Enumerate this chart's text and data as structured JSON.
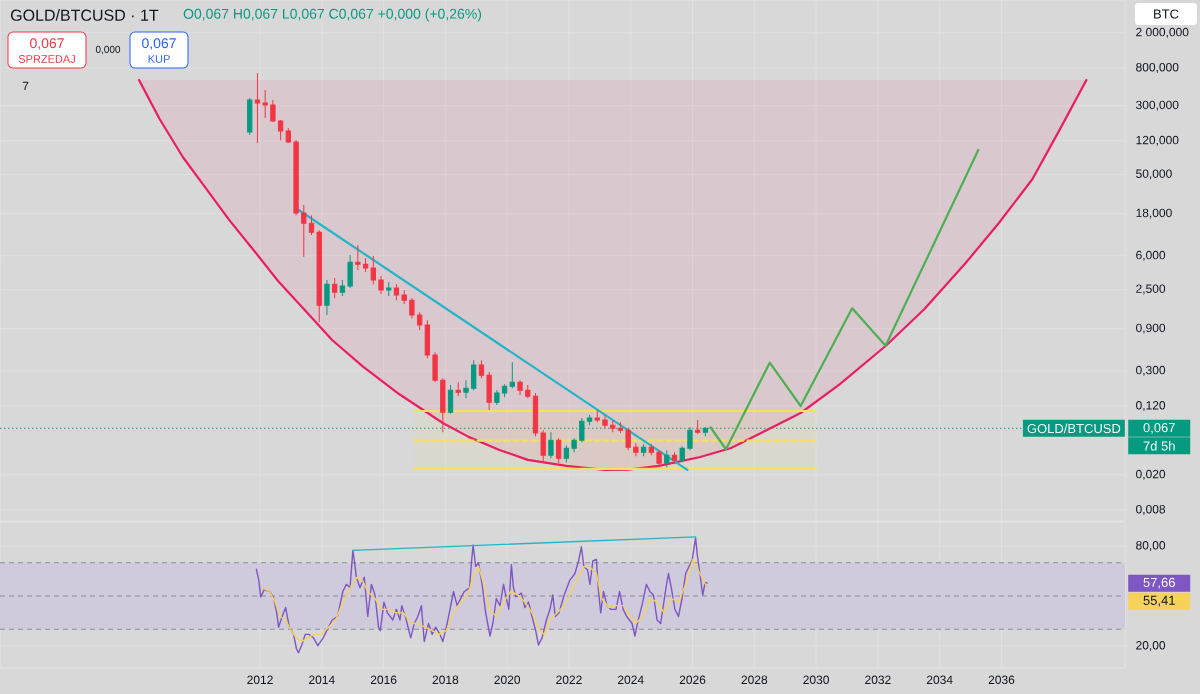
{
  "chart_data": [
    {
      "type": "candlestick",
      "title": "GOLD/BTCUSD · 1T",
      "subtitle": "O0,067 H0,067 L0,067 C0,067 +0,000 (+0,26%)",
      "ylabel": "BTC",
      "x": [
        "2011-09",
        "2011-12",
        "2012-03",
        "2012-06",
        "2012-09",
        "2012-12",
        "2013-03",
        "2013-06",
        "2013-09",
        "2013-12",
        "2014-03",
        "2014-06",
        "2014-09",
        "2014-12",
        "2015-03",
        "2015-06",
        "2015-09",
        "2015-12",
        "2016-03",
        "2016-06",
        "2016-09",
        "2016-12",
        "2017-03",
        "2017-06",
        "2017-09",
        "2017-12",
        "2018-03",
        "2018-06",
        "2018-09",
        "2018-12",
        "2019-03",
        "2019-06",
        "2019-09",
        "2019-12",
        "2020-03",
        "2020-06",
        "2020-09",
        "2020-12",
        "2021-03",
        "2021-06",
        "2021-09",
        "2021-12",
        "2022-03",
        "2022-06",
        "2022-09",
        "2022-12",
        "2023-03",
        "2023-06",
        "2023-09",
        "2023-12",
        "2024-03",
        "2024-06",
        "2024-09",
        "2024-12",
        "2025-03",
        "2025-06",
        "2025-09",
        "2025-12",
        "2026-03",
        "2026-06"
      ],
      "ohlc": [
        [
          151,
          366,
          140,
          347
        ],
        [
          347,
          702,
          113,
          321
        ],
        [
          321,
          451,
          217,
          305
        ],
        [
          305,
          347,
          196,
          201
        ],
        [
          201,
          206,
          122,
          155
        ],
        [
          155,
          168,
          113,
          116
        ],
        [
          116,
          122,
          17.3,
          18.3
        ],
        [
          18.3,
          22.5,
          5.81,
          14.0
        ],
        [
          14.0,
          17.3,
          10.3,
          11.1
        ],
        [
          11.1,
          11.7,
          1.07,
          1.66
        ],
        [
          1.66,
          3.19,
          1.28,
          2.87
        ],
        [
          2.87,
          3.36,
          1.99,
          2.33
        ],
        [
          2.33,
          3.19,
          2.1,
          2.73
        ],
        [
          2.73,
          6.12,
          2.59,
          5.09
        ],
        [
          5.09,
          7.93,
          4.14,
          4.83
        ],
        [
          4.83,
          5.65,
          3.93,
          4.36
        ],
        [
          4.36,
          5.96,
          2.87,
          3.19
        ],
        [
          3.19,
          3.54,
          2.22,
          2.46
        ],
        [
          2.46,
          3.03,
          2.1,
          2.59
        ],
        [
          2.59,
          2.87,
          1.89,
          2.16
        ],
        [
          2.16,
          2.46,
          1.71,
          1.89
        ],
        [
          1.89,
          1.99,
          1.18,
          1.28
        ],
        [
          1.28,
          1.38,
          0.866,
          0.987
        ],
        [
          0.987,
          1.12,
          0.417,
          0.452
        ],
        [
          0.452,
          0.488,
          0.223,
          0.235
        ],
        [
          0.235,
          0.248,
          0.0607,
          0.102
        ],
        [
          0.102,
          0.207,
          0.098,
          0.181
        ],
        [
          0.181,
          0.223,
          0.155,
          0.172
        ],
        [
          0.172,
          0.235,
          0.147,
          0.191
        ],
        [
          0.191,
          0.396,
          0.181,
          0.348
        ],
        [
          0.348,
          0.396,
          0.248,
          0.268
        ],
        [
          0.268,
          0.29,
          0.108,
          0.132
        ],
        [
          0.132,
          0.181,
          0.123,
          0.168
        ],
        [
          0.168,
          0.212,
          0.151,
          0.201
        ],
        [
          0.201,
          0.376,
          0.191,
          0.223
        ],
        [
          0.223,
          0.235,
          0.159,
          0.181
        ],
        [
          0.181,
          0.207,
          0.147,
          0.155
        ],
        [
          0.155,
          0.168,
          0.0547,
          0.0592
        ],
        [
          0.0592,
          0.064,
          0.027,
          0.0333
        ],
        [
          0.0333,
          0.0607,
          0.0308,
          0.0493
        ],
        [
          0.0493,
          0.0519,
          0.027,
          0.0308
        ],
        [
          0.0308,
          0.0433,
          0.0278,
          0.04
        ],
        [
          0.04,
          0.0519,
          0.036,
          0.0493
        ],
        [
          0.0493,
          0.0875,
          0.0468,
          0.0809
        ],
        [
          0.0809,
          0.0946,
          0.0729,
          0.0875
        ],
        [
          0.0875,
          0.108,
          0.0788,
          0.0831
        ],
        [
          0.0831,
          0.0946,
          0.0674,
          0.0729
        ],
        [
          0.0729,
          0.0831,
          0.0607,
          0.0674
        ],
        [
          0.0674,
          0.0788,
          0.0592,
          0.064
        ],
        [
          0.064,
          0.0674,
          0.038,
          0.0411
        ],
        [
          0.0411,
          0.0456,
          0.0325,
          0.036
        ],
        [
          0.036,
          0.0444,
          0.0325,
          0.0411
        ],
        [
          0.0411,
          0.0444,
          0.0333,
          0.036
        ],
        [
          0.036,
          0.038,
          0.0244,
          0.027
        ],
        [
          0.027,
          0.038,
          0.0244,
          0.0333
        ],
        [
          0.0333,
          0.036,
          0.0263,
          0.0292
        ],
        [
          0.0292,
          0.0421,
          0.0278,
          0.04
        ],
        [
          0.04,
          0.0692,
          0.038,
          0.064
        ],
        [
          0.064,
          0.0831,
          0.0577,
          0.0607
        ],
        [
          0.0607,
          0.0692,
          0.0547,
          0.067
        ]
      ],
      "colors": [
        "#089981",
        "#f23645",
        "#f23645",
        "#f23645",
        "#f23645",
        "#f23645",
        "#f23645",
        "#f23645",
        "#f23645",
        "#f23645",
        "#089981",
        "#f23645",
        "#089981",
        "#089981",
        "#f23645",
        "#f23645",
        "#f23645",
        "#f23645",
        "#089981",
        "#f23645",
        "#f23645",
        "#f23645",
        "#f23645",
        "#f23645",
        "#f23645",
        "#f23645",
        "#089981",
        "#f23645",
        "#089981",
        "#089981",
        "#f23645",
        "#f23645",
        "#089981",
        "#089981",
        "#089981",
        "#f23645",
        "#f23645",
        "#f23645",
        "#f23645",
        "#089981",
        "#f23645",
        "#089981",
        "#089981",
        "#089981",
        "#089981",
        "#f23645",
        "#f23645",
        "#f23645",
        "#f23645",
        "#f23645",
        "#f23645",
        "#089981",
        "#f23645",
        "#f23645",
        "#089981",
        "#f23645",
        "#089981",
        "#089981",
        "#f23645",
        "#089981"
      ],
      "series": [
        {
          "type": "line",
          "color": "#e91e63",
          "x": [
            "2008-02",
            "2008-10",
            "2009-07",
            "2010-04",
            "2011-01",
            "2011-11",
            "2012-08",
            "2013-06",
            "2014-05",
            "2015-05",
            "2016-07",
            "2017-12",
            "2018-10",
            "2019-10",
            "2020-09",
            "2021-12",
            "2023-03",
            "2023-12",
            "2024-12",
            "2026-04",
            "2027-04",
            "2029-07",
            "2030-10",
            "2032-04",
            "2033-07",
            "2034-11",
            "2035-12",
            "2037-01",
            "2037-12",
            "2038-10"
          ],
          "values": [
            585,
            212,
            78.7,
            34.8,
            15.3,
            6.68,
            3.11,
            1.5,
            0.67,
            0.335,
            0.164,
            0.0771,
            0.0537,
            0.0382,
            0.0295,
            0.0252,
            0.0227,
            0.0229,
            0.0252,
            0.0318,
            0.0402,
            0.1,
            0.209,
            0.573,
            1.49,
            4.94,
            14.1,
            44.1,
            168,
            585
          ],
          "lower": [
            585,
            212,
            78.7,
            34.8,
            15.3,
            6.68,
            3.11,
            1.5,
            0.67,
            0.335,
            0.164,
            0.0771,
            0.0537,
            0.0382,
            0.0295,
            0.0252,
            0.0227,
            0.0229,
            0.0252,
            0.0318,
            0.0402,
            0.1,
            0.209,
            0.573,
            1.49,
            4.94,
            14.1,
            44.1,
            168,
            585
          ],
          "upper": [
            585,
            585,
            585,
            585,
            585,
            585,
            585,
            585,
            585,
            585,
            585,
            585,
            585,
            585,
            585,
            585,
            585,
            585,
            585,
            585,
            585,
            585,
            585,
            585,
            585,
            585,
            585,
            585,
            585,
            585
          ]
        },
        {
          "type": "line",
          "color": "#f5e15c",
          "line_style": "dashed",
          "x": [
            "2017-01",
            "2030-01"
          ],
          "values": [
            0.0486,
            0.0486
          ],
          "lower": [
            0.0233,
            0.0233
          ],
          "upper": [
            0.1054,
            0.1054
          ]
        },
        {
          "type": "line",
          "color": "#f5e15c",
          "x": [
            "2017-01",
            "2030-01"
          ],
          "values": [
            0.1054,
            0.1054
          ]
        },
        {
          "type": "line",
          "color": "#f5e15c",
          "x": [
            "2017-01",
            "2030-01"
          ],
          "values": [
            0.0233,
            0.0233
          ]
        },
        {
          "type": "line",
          "color": "#22b5c9",
          "x": [
            "2013-04",
            "2025-11"
          ],
          "values": [
            19.8,
            0.0227
          ]
        },
        {
          "type": "line",
          "color": "#4caf50",
          "x": [
            "2026-08",
            "2027-02",
            "2028-07",
            "2029-07",
            "2031-03",
            "2032-04",
            "2035-04"
          ],
          "values": [
            0.0689,
            0.0389,
            0.371,
            0.12,
            1.53,
            0.578,
            94.4
          ]
        }
      ],
      "xlim": [
        "2003-08",
        "2040-01"
      ],
      "ylim": [
        0.006,
        4700
      ],
      "xticks": [
        "2012",
        "2014",
        "2016",
        "2018",
        "2020",
        "2022",
        "2024",
        "2026",
        "2028",
        "2030",
        "2032",
        "2034",
        "2036"
      ],
      "yticks": [
        {
          "value": 2000,
          "label": "2 000,000"
        },
        {
          "value": 800,
          "label": "800,000"
        },
        {
          "value": 300,
          "label": "300,000"
        },
        {
          "value": 120,
          "label": "120,000"
        },
        {
          "value": 50,
          "label": "50,000"
        },
        {
          "value": 18,
          "label": "18,000"
        },
        {
          "value": 6,
          "label": "6,000"
        },
        {
          "value": 2.5,
          "label": "2,500"
        },
        {
          "value": 0.9,
          "label": "0,900"
        },
        {
          "value": 0.3,
          "label": "0,300"
        },
        {
          "value": 0.12,
          "label": "0,120"
        },
        {
          "value": 0.02,
          "label": "0,020"
        },
        {
          "value": 0.008,
          "label": "0,008"
        }
      ],
      "log": true,
      "grid": true,
      "tick_labels": "y",
      "ref_lines": [
        {
          "axis": "y",
          "value": 0.067,
          "label": "GOLD/BTCUSD",
          "color": "#089981",
          "line_style": "dotted"
        }
      ],
      "annotations": [
        "0,067",
        "SPRZEDAJ",
        "0,000",
        "0,067",
        "KUP",
        "7",
        "0,067",
        "7d 5h"
      ]
    },
    {
      "type": "line",
      "series": [
        {
          "color": "#7e57c2",
          "x": [
            "2011-11-19",
            "2011-12-18",
            "2012-01-09",
            "2012-02-21",
            "2012-04-23",
            "2012-06-05",
            "2012-07-16",
            "2012-08-07",
            "2012-09-19",
            "2012-10-30",
            "2012-12-12",
            "2013-02-02",
            "2013-03-05",
            "2013-03-30",
            "2013-05-08",
            "2013-06-19",
            "2013-08-01",
            "2013-09-25",
            "2013-11-15",
            "2014-01-17",
            "2014-03-20",
            "2014-05-02",
            "2014-07-04",
            "2014-09-06",
            "2014-10-18",
            "2014-11-30",
            "2015-01-03",
            "2015-01-19",
            "2015-02-14",
            "2015-03-26",
            "2015-05-16",
            "2015-06-27",
            "2015-08-09",
            "2015-09-21",
            "2015-11-02",
            "2015-11-23",
            "2016-01-05",
            "2016-02-16",
            "2016-04-19",
            "2016-05-30",
            "2016-07-12",
            "2016-08-03",
            "2016-09-15",
            "2016-11-17",
            "2016-12-29",
            "2017-02-10",
            "2017-03-22",
            "2017-04-25",
            "2017-06-15",
            "2017-07-27",
            "2017-09-08",
            "2017-10-28",
            "2017-12-01",
            "2018-01-13",
            "2018-02-25",
            "2018-04-06",
            "2018-05-18",
            "2018-08-11",
            "2018-10-13",
            "2018-11-04",
            "2018-11-25",
            "2018-12-24",
            "2019-01-27",
            "2019-03-09",
            "2019-04-21",
            "2019-06-11",
            "2019-07-14",
            "2019-08-25",
            "2019-10-07",
            "2019-11-19",
            "2019-12-22",
            "2020-01-21",
            "2020-02-20",
            "2020-03-15",
            "2020-04-14",
            "2020-06-17",
            "2020-07-28",
            "2020-09-10",
            "2020-10-21",
            "2020-12-03",
            "2021-01-06",
            "2021-02-18",
            "2021-04-08",
            "2021-05-20",
            "2021-06-23",
            "2021-07-22",
            "2021-09-04",
            "2021-11-06",
            "2022-01-08",
            "2022-03-11",
            "2022-04-23",
            "2022-05-26",
            "2022-06-25",
            "2022-08-07",
            "2022-09-06",
            "2022-10-09",
            "2022-11-21",
            "2022-12-12",
            "2023-01-11",
            "2023-02-14",
            "2023-03-25",
            "2023-05-07",
            "2023-07-09",
            "2023-08-21",
            "2023-10-03",
            "2023-11-14",
            "2024-01-17",
            "2024-02-20",
            "2024-03-19",
            "2024-05-21",
            "2024-07-03",
            "2024-08-15",
            "2024-09-26",
            "2024-11-08",
            "2024-12-20",
            "2025-02-22",
            "2025-03-21",
            "2025-04-24",
            "2025-06-06",
            "2025-07-18",
            "2025-08-29",
            "2025-10-11",
            "2025-12-30",
            "2026-01-04",
            "2026-02-07",
            "2026-02-28",
            "2026-03-27",
            "2026-04-30",
            "2026-05-29",
            "2026-06-20"
          ],
          "values": [
            66.0,
            59.2,
            49.5,
            53.8,
            52.7,
            49.5,
            39.9,
            31.3,
            37.7,
            43.1,
            31.3,
            27.0,
            18.5,
            15.9,
            20.6,
            27.0,
            27.0,
            24.9,
            20.2,
            24.9,
            31.3,
            35.6,
            37.7,
            52.7,
            57.0,
            54.9,
            77.4,
            72.0,
            61.3,
            54.9,
            61.3,
            37.7,
            57.0,
            50.6,
            31.3,
            29.2,
            46.3,
            39.9,
            35.6,
            42.0,
            35.6,
            44.2,
            37.7,
            24.9,
            33.5,
            37.7,
            44.2,
            22.7,
            33.5,
            27.0,
            31.3,
            27.0,
            22.7,
            31.3,
            42.0,
            52.7,
            44.2,
            52.7,
            54.9,
            69.9,
            80.6,
            67.7,
            69.9,
            57.0,
            39.9,
            26.0,
            33.5,
            48.5,
            44.2,
            57.0,
            48.5,
            42.0,
            68.8,
            54.9,
            49.5,
            51.7,
            43.1,
            46.3,
            37.7,
            29.2,
            20.6,
            24.9,
            35.6,
            42.0,
            50.6,
            37.7,
            39.9,
            50.6,
            59.2,
            63.5,
            71.0,
            79.5,
            67.7,
            65.6,
            57.0,
            71.0,
            72.0,
            54.9,
            39.9,
            52.7,
            44.2,
            42.0,
            42.0,
            52.7,
            42.0,
            37.7,
            33.5,
            26.0,
            33.5,
            46.3,
            57.0,
            52.7,
            50.6,
            35.6,
            33.5,
            54.9,
            63.5,
            54.9,
            42.0,
            37.7,
            48.5,
            63.5,
            72.0,
            74.2,
            84.9,
            74.2,
            63.5,
            50.6,
            58.1,
            57.7
          ]
        },
        {
          "color": "#f5d35a",
          "x": [
            "2012-01-30",
            "2012-04-23",
            "2012-06-26",
            "2012-08-28",
            "2012-10-30",
            "2013-01-03",
            "2013-03-05",
            "2013-05-08",
            "2013-07-10",
            "2013-10-03",
            "2013-12-26",
            "2014-03-20",
            "2014-06-13",
            "2014-09-06",
            "2014-11-30",
            "2015-02-23",
            "2015-04-25",
            "2015-06-27",
            "2015-09-21",
            "2015-12-14",
            "2016-03-07",
            "2016-05-30",
            "2016-08-24",
            "2016-11-17",
            "2017-02-10",
            "2017-05-03",
            "2017-07-27",
            "2017-10-20",
            "2018-01-13",
            "2018-04-06",
            "2018-06-29",
            "2018-09-22",
            "2018-11-25",
            "2019-01-27",
            "2019-03-29",
            "2019-06-02",
            "2019-08-25",
            "2019-11-19",
            "2020-02-12",
            "2020-05-05",
            "2020-07-28",
            "2020-10-21",
            "2021-01-15",
            "2021-03-17",
            "2021-05-20",
            "2021-08-13",
            "2021-11-06",
            "2022-01-29",
            "2022-04-23",
            "2022-06-25",
            "2022-09-18",
            "2022-11-21",
            "2023-01-23",
            "2023-04-16",
            "2023-07-09",
            "2023-10-03",
            "2023-12-26",
            "2024-02-28",
            "2024-05-21",
            "2024-08-15",
            "2024-11-08",
            "2025-02-01",
            "2025-04-24",
            "2025-07-18",
            "2025-10-11",
            "2026-01-04",
            "2026-03-27",
            "2026-05-09",
            "2026-06-20"
          ],
          "values": [
            54.9,
            52.7,
            46.3,
            37.7,
            35.6,
            29.2,
            24.9,
            22.7,
            24.9,
            27.0,
            27.0,
            31.3,
            35.6,
            46.3,
            54.9,
            61.3,
            59.2,
            52.7,
            48.5,
            42.0,
            42.0,
            39.9,
            39.9,
            33.5,
            33.5,
            31.3,
            29.2,
            27.0,
            29.2,
            39.9,
            46.3,
            50.6,
            61.3,
            67.7,
            57.0,
            42.0,
            37.7,
            46.3,
            52.7,
            50.6,
            46.3,
            39.9,
            29.2,
            27.0,
            35.6,
            39.9,
            44.2,
            52.7,
            61.3,
            67.7,
            66.7,
            63.5,
            48.5,
            43.1,
            44.2,
            44.2,
            37.7,
            33.5,
            37.7,
            48.5,
            46.3,
            39.9,
            48.5,
            46.3,
            57.0,
            72.0,
            63.5,
            59.2,
            55.4
          ]
        },
        {
          "color": "#22b5c9",
          "x": [
            "2015-01-03",
            "2026-02-07"
          ],
          "values": [
            77.4,
            85.5
          ]
        }
      ],
      "xlim": [
        "2003-08",
        "2040-01"
      ],
      "ylim": [
        6.8,
        94.4
      ],
      "xticks": [
        "2012",
        "2014",
        "2016",
        "2018",
        "2020",
        "2022",
        "2024",
        "2026",
        "2028",
        "2030",
        "2032",
        "2034",
        "2036"
      ],
      "yticks": [
        {
          "value": 80,
          "label": "80,00"
        },
        {
          "value": 20,
          "label": "20,00"
        }
      ],
      "grid": true,
      "bands": [
        {
          "axis": "y",
          "from": 30,
          "to": 70,
          "color": "#d0cbdc"
        }
      ],
      "ref_lines": [
        {
          "axis": "y",
          "value": 70,
          "color": "#8b8e97",
          "line_style": "dashed"
        },
        {
          "axis": "y",
          "value": 50,
          "color": "#8b8e97",
          "line_style": "dashed"
        },
        {
          "axis": "y",
          "value": 30,
          "color": "#8b8e97",
          "line_style": "dashed"
        }
      ],
      "annotations": [
        "57,66",
        "55,41"
      ]
    }
  ]
}
